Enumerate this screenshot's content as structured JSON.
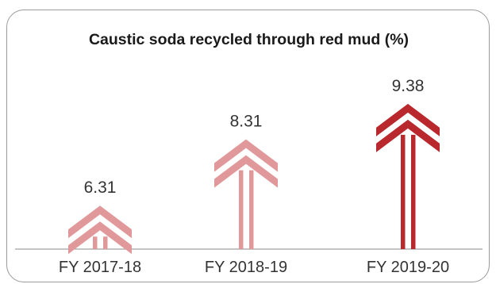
{
  "chart_data": {
    "type": "bar",
    "title": "Caustic soda recycled through red mud (%)",
    "categories": [
      "FY 2017-18",
      "FY 2018-19",
      "FY 2019-20"
    ],
    "values": [
      6.31,
      8.31,
      9.38
    ],
    "value_labels": [
      "6.31",
      "8.31",
      "9.38"
    ],
    "ylim": [
      5,
      10
    ],
    "grid": false,
    "colors": [
      "#e0989a",
      "#e0989a",
      "#b8282d"
    ]
  }
}
